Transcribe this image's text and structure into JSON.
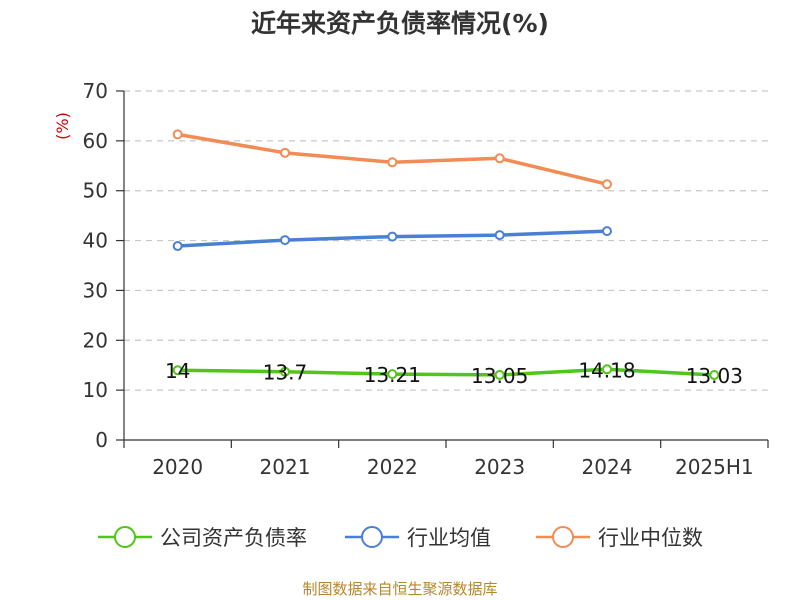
{
  "chart_data": {
    "type": "line",
    "title": "近年来资产负债率情况(%)",
    "ylabel": "(%)",
    "xlabel": "",
    "categories": [
      "2020",
      "2021",
      "2022",
      "2023",
      "2024",
      "2025H1"
    ],
    "ylim": [
      0,
      70
    ],
    "yticks": [
      0,
      10,
      20,
      30,
      40,
      50,
      60,
      70
    ],
    "grid": "horizontal-dashed",
    "legend_position": "bottom",
    "series": [
      {
        "name": "公司资产负债率",
        "color": "#52c41a",
        "values": [
          14,
          13.7,
          13.21,
          13.05,
          14.18,
          13.03
        ],
        "labels": [
          "14",
          "13.7",
          "13.21",
          "13.05",
          "14.18",
          "13.03"
        ]
      },
      {
        "name": "行业均值",
        "color": "#4a7fd6",
        "values": [
          38.9,
          40.1,
          40.8,
          41.1,
          41.9,
          null
        ]
      },
      {
        "name": "行业中位数",
        "color": "#f28b54",
        "values": [
          61.3,
          57.6,
          55.7,
          56.5,
          51.3,
          null
        ]
      }
    ]
  },
  "footer": {
    "source": "制图数据来自恒生聚源数据库"
  }
}
